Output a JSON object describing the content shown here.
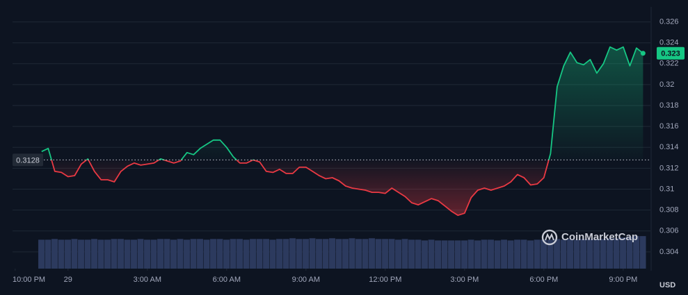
{
  "chart_data": {
    "type": "line",
    "x": [
      1,
      1.25,
      1.5,
      1.75,
      2,
      2.25,
      2.5,
      2.75,
      3,
      3.25,
      3.5,
      3.75,
      4,
      4.25,
      4.5,
      4.75,
      5,
      5.25,
      5.5,
      5.75,
      6,
      6.25,
      6.5,
      6.75,
      7,
      7.25,
      7.5,
      7.75,
      8,
      8.25,
      8.5,
      8.75,
      9,
      9.25,
      9.5,
      9.75,
      10,
      10.25,
      10.5,
      10.75,
      11,
      11.25,
      11.5,
      11.75,
      12,
      12.25,
      12.5,
      12.75,
      13,
      13.25,
      13.5,
      13.75,
      14,
      14.25,
      14.5,
      14.75,
      15,
      15.25,
      15.5,
      15.75,
      16,
      16.25,
      16.5,
      16.75,
      17,
      17.25,
      17.5,
      17.75,
      18,
      18.25,
      18.5,
      18.75,
      19,
      19.25,
      19.5,
      19.75,
      20,
      20.25,
      20.5,
      20.75,
      21,
      21.25,
      21.5,
      21.75,
      22,
      22.25,
      22.5,
      22.75,
      23,
      23.25,
      23.5,
      23.75
    ],
    "values": [
      0.3136,
      0.3139,
      0.3117,
      0.3116,
      0.3112,
      0.3113,
      0.3124,
      0.3129,
      0.3117,
      0.3109,
      0.3109,
      0.3107,
      0.3117,
      0.3122,
      0.3125,
      0.3123,
      0.3124,
      0.3125,
      0.3129,
      0.3127,
      0.3125,
      0.3127,
      0.3135,
      0.3133,
      0.3139,
      0.3143,
      0.3147,
      0.3147,
      0.314,
      0.3131,
      0.3125,
      0.3125,
      0.3128,
      0.3126,
      0.3117,
      0.3116,
      0.3119,
      0.3115,
      0.3115,
      0.3121,
      0.3121,
      0.3117,
      0.3113,
      0.311,
      0.3111,
      0.3108,
      0.3103,
      0.3101,
      0.31,
      0.3099,
      0.3097,
      0.3097,
      0.3096,
      0.3101,
      0.3097,
      0.3093,
      0.3087,
      0.3085,
      0.3088,
      0.3091,
      0.3089,
      0.3084,
      0.3079,
      0.3075,
      0.3077,
      0.3092,
      0.3099,
      0.3101,
      0.3099,
      0.3101,
      0.3103,
      0.3107,
      0.3114,
      0.3111,
      0.3104,
      0.3105,
      0.3111,
      0.3134,
      0.3198,
      0.3218,
      0.3231,
      0.3221,
      0.3219,
      0.3224,
      0.3211,
      0.322,
      0.3236,
      0.3233,
      0.3236,
      0.3218,
      0.3235,
      0.323
    ],
    "volume": [
      40,
      40,
      41,
      40,
      40,
      41,
      40,
      40,
      41,
      40,
      40,
      41,
      41,
      40,
      40,
      41,
      40,
      40,
      41,
      41,
      40,
      41,
      40,
      41,
      41,
      40,
      41,
      41,
      40,
      41,
      41,
      40,
      41,
      41,
      41,
      40,
      41,
      41,
      42,
      41,
      41,
      42,
      41,
      41,
      42,
      41,
      41,
      42,
      41,
      41,
      42,
      41,
      41,
      41,
      40,
      41,
      40,
      40,
      39,
      40,
      39,
      39,
      39,
      39,
      39,
      40,
      39,
      40,
      40,
      39,
      40,
      39,
      40,
      40,
      39,
      40,
      40,
      40,
      41,
      40,
      41,
      40,
      41,
      41,
      41,
      41,
      42,
      42,
      43,
      44,
      45,
      45
    ],
    "vlim": [
      0,
      100
    ],
    "reference_value": 0.3128,
    "color_up": "#16c784",
    "color_down": "#ea3943",
    "volume_color": "#2c3a5e",
    "xlim": [
      -0.1,
      24.03
    ],
    "xticks": [
      {
        "value": 0,
        "label": "10:00 PM"
      },
      {
        "value": 2,
        "label": "29"
      },
      {
        "value": 5,
        "label": "3:00 AM"
      },
      {
        "value": 8,
        "label": "6:00 AM"
      },
      {
        "value": 11,
        "label": "9:00 AM"
      },
      {
        "value": 14,
        "label": "12:00 PM"
      },
      {
        "value": 17,
        "label": "3:00 PM"
      },
      {
        "value": 20,
        "label": "6:00 PM"
      },
      {
        "value": 23,
        "label": "9:00 PM"
      }
    ],
    "ylim": [
      0.3024,
      0.3271
    ],
    "yticks": [
      0.304,
      0.306,
      0.308,
      0.31,
      0.312,
      0.314,
      0.316,
      0.318,
      0.32,
      0.322,
      0.324,
      0.326
    ],
    "grid": true,
    "currency": "USD",
    "watermark": "CoinMarketCap"
  }
}
